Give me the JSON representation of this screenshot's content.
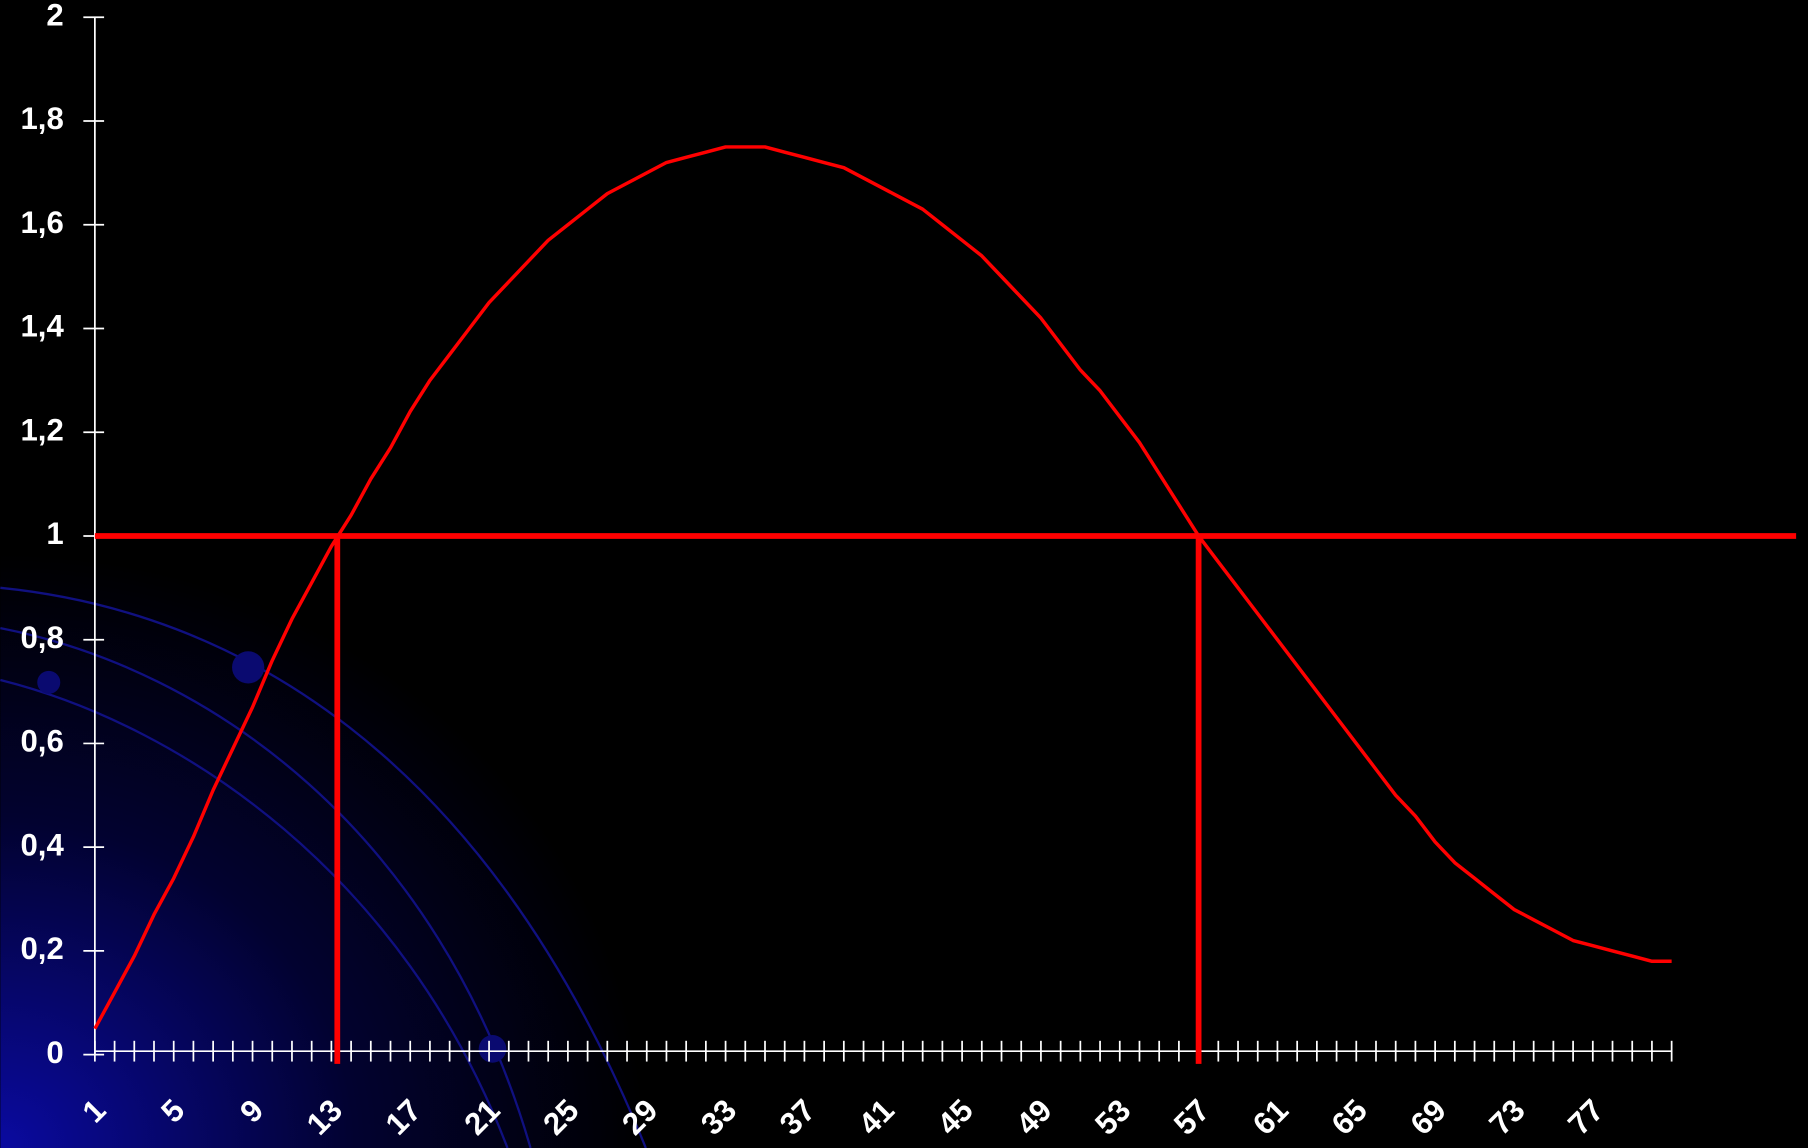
{
  "chart_data": {
    "type": "line",
    "categories": [
      1,
      null,
      null,
      null,
      5,
      null,
      null,
      null,
      9,
      null,
      null,
      null,
      13,
      null,
      null,
      null,
      17,
      null,
      null,
      null,
      21,
      null,
      null,
      null,
      25,
      null,
      null,
      null,
      29,
      null,
      null,
      null,
      33,
      null,
      null,
      null,
      37,
      null,
      null,
      null,
      41,
      null,
      null,
      null,
      45,
      null,
      null,
      null,
      49,
      null,
      null,
      null,
      53,
      null,
      null,
      null,
      57,
      null,
      null,
      null,
      61,
      null,
      null,
      null,
      65,
      null,
      null,
      null,
      69,
      null,
      null,
      null,
      73,
      null,
      null,
      null,
      77,
      null,
      null,
      null,
      null
    ],
    "series": [
      {
        "color": "#ff0000",
        "values": [
          0.05,
          0.12,
          0.19,
          0.27,
          0.34,
          0.42,
          0.51,
          0.59,
          0.67,
          0.76,
          0.84,
          0.91,
          0.98,
          1.04,
          1.11,
          1.17,
          1.24,
          1.3,
          1.35,
          1.4,
          1.45,
          1.49,
          1.53,
          1.57,
          1.6,
          1.63,
          1.66,
          1.68,
          1.7,
          1.72,
          1.73,
          1.74,
          1.75,
          1.75,
          1.75,
          1.74,
          1.73,
          1.72,
          1.71,
          1.69,
          1.67,
          1.65,
          1.63,
          1.6,
          1.57,
          1.54,
          1.5,
          1.46,
          1.42,
          1.37,
          1.32,
          1.28,
          1.23,
          1.18,
          1.12,
          1.06,
          1.0,
          0.95,
          0.9,
          0.85,
          0.8,
          0.75,
          0.7,
          0.65,
          0.6,
          0.55,
          0.5,
          0.46,
          0.41,
          0.37,
          0.34,
          0.31,
          0.28,
          0.26,
          0.24,
          0.22,
          0.21,
          0.2,
          0.19,
          0.18,
          0.18
        ]
      }
    ],
    "ylim": [
      0,
      2
    ],
    "yticks": [
      0,
      {
        "value": 0.2,
        "label": "0,2"
      },
      {
        "value": 0.4,
        "label": "0,4"
      },
      {
        "value": 0.6,
        "label": "0,6"
      },
      {
        "value": 0.8,
        "label": "0,8"
      },
      1,
      {
        "value": 1.2,
        "label": "1,2"
      },
      {
        "value": 1.4,
        "label": "1,4"
      },
      {
        "value": 1.6,
        "label": "1,6"
      },
      {
        "value": 1.8,
        "label": "1,8"
      },
      2
    ],
    "reference_lines": {
      "y": 1,
      "x": [
        13.3,
        57
      ],
      "color": "#ff0000"
    }
  }
}
